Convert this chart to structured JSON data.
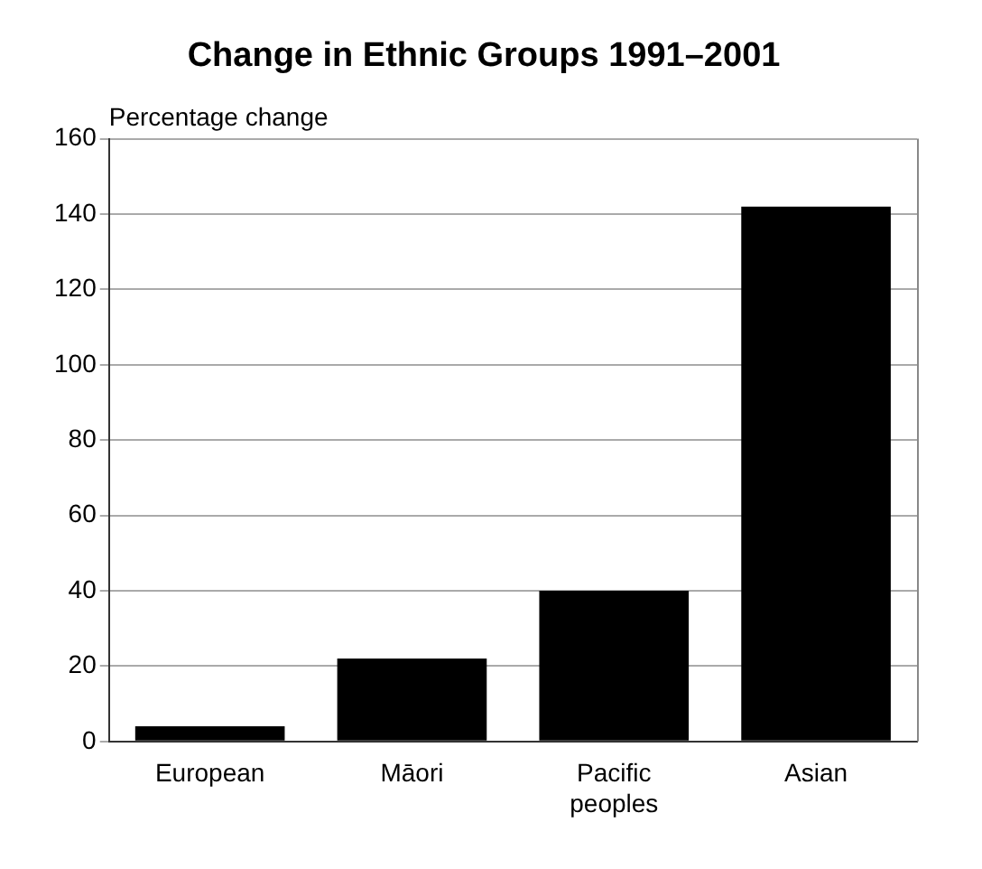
{
  "chart_data": {
    "type": "bar",
    "title": "Change in Ethnic Groups 1991–2001",
    "ylabel": "Percentage change",
    "categories": [
      "European",
      "Māori",
      "Pacific peoples",
      "Asian"
    ],
    "values": [
      4,
      22,
      40,
      142
    ],
    "color": "#000000",
    "ylim": [
      0,
      160
    ],
    "yticks": [
      0,
      20,
      40,
      60,
      80,
      100,
      120,
      140,
      160
    ],
    "grid": "y",
    "legend": false
  }
}
